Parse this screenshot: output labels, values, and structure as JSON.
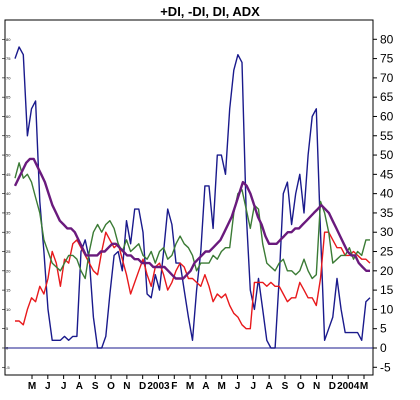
{
  "chart_data": {
    "type": "line",
    "title": "+DI, -DI, DI, ADX",
    "xlabel": "",
    "ylabel": "",
    "ylim": [
      -7,
      85
    ],
    "yticks": [
      -5,
      0,
      5,
      10,
      15,
      20,
      25,
      30,
      35,
      40,
      45,
      50,
      55,
      60,
      65,
      70,
      75,
      80
    ],
    "xticks": [
      "M",
      "J",
      "J",
      "A",
      "S",
      "O",
      "N",
      "D",
      "2003",
      "F",
      "M",
      "A",
      "M",
      "J",
      "J",
      "A",
      "S",
      "O",
      "N",
      "D",
      "2004",
      "M"
    ],
    "reference_line": 0,
    "grid": false,
    "legend": "none",
    "series": [
      {
        "color": "#1a1a8c",
        "width": 1.4,
        "values": [
          75,
          78,
          76,
          55,
          62,
          64,
          38,
          25,
          10,
          2,
          2,
          2,
          3,
          2,
          3,
          3,
          25,
          28,
          23,
          8,
          0,
          0,
          3,
          14,
          24,
          25,
          20,
          33,
          27,
          36,
          36,
          30,
          14,
          13,
          19,
          15,
          25,
          36,
          32,
          22,
          22,
          15,
          8,
          2,
          15,
          25,
          42,
          42,
          31,
          50,
          50,
          45,
          62,
          72,
          76,
          74,
          35,
          15,
          10,
          18,
          10,
          2,
          0,
          0,
          18,
          40,
          43,
          32,
          40,
          45,
          35,
          50,
          60,
          62,
          30,
          2,
          5,
          8,
          18,
          10,
          4,
          4,
          4,
          4,
          2,
          12,
          13
        ]
      },
      {
        "color": "#e8191c",
        "width": 1.4,
        "values": [
          7,
          7,
          6,
          10,
          13,
          12,
          16,
          14,
          18,
          25,
          22,
          16,
          23,
          22,
          27,
          28,
          26,
          24,
          22,
          20,
          19,
          25,
          30,
          28,
          26,
          27,
          23,
          19,
          14,
          17,
          20,
          23,
          19,
          16,
          21,
          22,
          19,
          15,
          17,
          20,
          22,
          21,
          18,
          18,
          17,
          16,
          19,
          16,
          12,
          14,
          13,
          14,
          11,
          9,
          8,
          6,
          5,
          5,
          17,
          17,
          17,
          16,
          17,
          16,
          16,
          14,
          12,
          13,
          13,
          17,
          15,
          13,
          13,
          11,
          18,
          30,
          30,
          28,
          26,
          26,
          24,
          24,
          25,
          24,
          23,
          23,
          22
        ]
      },
      {
        "color": "#3b7b35",
        "width": 1.4,
        "values": [
          44,
          48,
          44,
          45,
          43,
          39,
          35,
          28,
          25,
          22,
          21,
          20,
          22,
          24,
          24,
          23,
          20,
          18,
          25,
          30,
          32,
          30,
          32,
          33,
          31,
          27,
          25,
          28,
          25,
          26,
          27,
          24,
          23,
          25,
          22,
          25,
          26,
          23,
          24,
          27,
          29,
          27,
          26,
          24,
          20,
          22,
          22,
          22,
          24,
          23,
          25,
          26,
          26,
          35,
          40,
          41,
          36,
          31,
          37,
          36,
          27,
          22,
          21,
          20,
          22,
          23,
          20,
          20,
          19,
          20,
          23,
          20,
          18,
          19,
          38,
          35,
          30,
          22,
          23,
          24,
          24,
          26,
          23,
          25,
          24,
          28,
          28
        ]
      },
      {
        "color": "#6a1a7d",
        "width": 2.4,
        "values": [
          42,
          44,
          46,
          48,
          49,
          49,
          47,
          45,
          43,
          40,
          37,
          35,
          33,
          32,
          31,
          31,
          30,
          28,
          26,
          24,
          24,
          24,
          24,
          25,
          25,
          26,
          27,
          27,
          26,
          25,
          24,
          24,
          23,
          23,
          22,
          22,
          22,
          21,
          21,
          21,
          21,
          20,
          19,
          18,
          18,
          18,
          19,
          20,
          22,
          23,
          24,
          25,
          25,
          26,
          27,
          28,
          30,
          32,
          34,
          37,
          40,
          43,
          42,
          40,
          37,
          34,
          32,
          29,
          27,
          27,
          27,
          28,
          29,
          30,
          30,
          31,
          31,
          32,
          33,
          34,
          35,
          36,
          37,
          36,
          35,
          33,
          31,
          29,
          27,
          25,
          24,
          24,
          22,
          21,
          20,
          20
        ]
      }
    ]
  }
}
